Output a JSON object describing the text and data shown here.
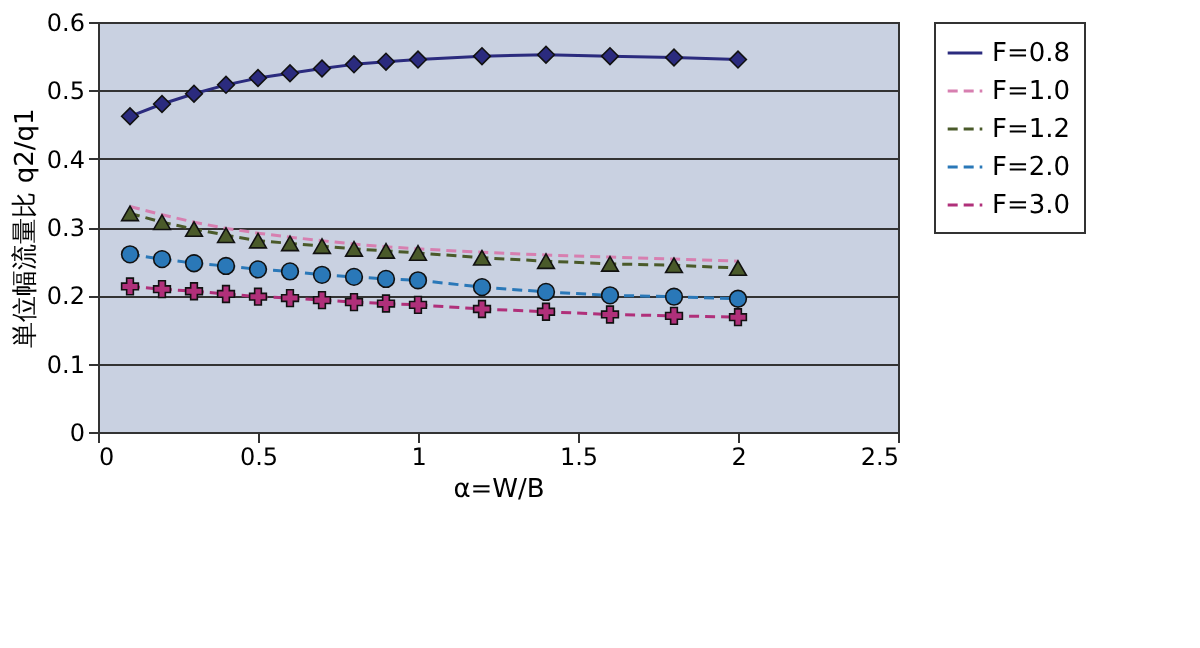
{
  "chart_data": {
    "type": "line",
    "xlabel": "α=W/B",
    "ylabel": "単位幅流量比 q2/q1",
    "x": [
      0.1,
      0.2,
      0.3,
      0.4,
      0.5,
      0.6,
      0.7,
      0.8,
      0.9,
      1.0,
      1.2,
      1.4,
      1.6,
      1.8,
      2.0
    ],
    "xlim": [
      0,
      2.5
    ],
    "xticks": [
      0,
      0.5,
      1,
      1.5,
      2,
      2.5
    ],
    "ylim": [
      0,
      0.6
    ],
    "yticks": [
      0,
      0.1,
      0.2,
      0.3,
      0.4,
      0.5,
      0.6
    ],
    "grid": "y",
    "legend": "right",
    "series": [
      {
        "name": "F=0.8",
        "color": "#2b2b7e",
        "marker": "diamond",
        "line_style": "solid",
        "values": [
          0.462,
          0.48,
          0.495,
          0.508,
          0.518,
          0.525,
          0.532,
          0.538,
          0.542,
          0.545,
          0.55,
          0.552,
          0.55,
          0.548,
          0.545
        ]
      },
      {
        "name": "F=1.0",
        "color": "#d77fb0",
        "marker": "none",
        "line_style": "dashed",
        "values": [
          0.33,
          0.318,
          0.307,
          0.298,
          0.291,
          0.285,
          0.28,
          0.275,
          0.271,
          0.268,
          0.263,
          0.259,
          0.256,
          0.253,
          0.25
        ]
      },
      {
        "name": "F=1.2",
        "color": "#4a5a2a",
        "marker": "triangle",
        "line_style": "dashed",
        "values": [
          0.32,
          0.307,
          0.297,
          0.288,
          0.28,
          0.276,
          0.272,
          0.268,
          0.265,
          0.262,
          0.255,
          0.25,
          0.246,
          0.244,
          0.24
        ]
      },
      {
        "name": "F=2.0",
        "color": "#2a78b8",
        "marker": "circle",
        "line_style": "dashed",
        "values": [
          0.26,
          0.253,
          0.247,
          0.243,
          0.238,
          0.235,
          0.23,
          0.227,
          0.224,
          0.222,
          0.212,
          0.205,
          0.2,
          0.198,
          0.195
        ]
      },
      {
        "name": "F=3.0",
        "color": "#b0307a",
        "marker": "cross",
        "line_style": "dashed",
        "values": [
          0.213,
          0.209,
          0.206,
          0.202,
          0.198,
          0.196,
          0.193,
          0.19,
          0.188,
          0.186,
          0.18,
          0.176,
          0.172,
          0.17,
          0.168
        ]
      }
    ]
  }
}
